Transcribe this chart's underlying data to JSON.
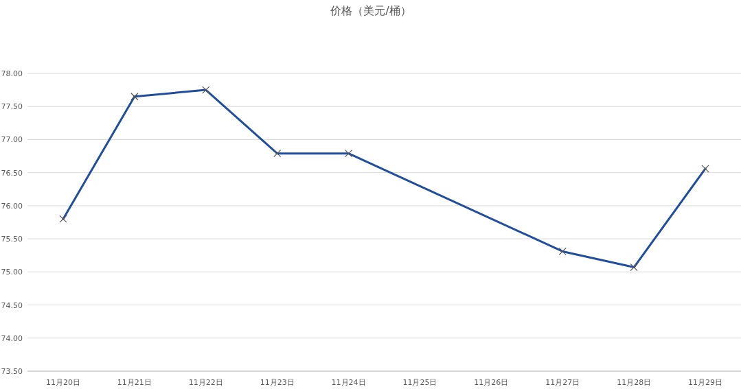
{
  "chart_data": {
    "type": "line",
    "title": "价格（美元/桶）",
    "categories": [
      "11月20日",
      "11月21日",
      "11月22日",
      "11月23日",
      "11月24日",
      "11月25日",
      "11月26日",
      "11月27日",
      "11月28日",
      "11月29日"
    ],
    "series": [
      {
        "color": "#1f4e9c",
        "values": [
          75.8,
          77.65,
          77.75,
          76.79,
          76.79,
          null,
          null,
          75.31,
          75.07,
          76.56
        ]
      }
    ],
    "ylim": [
      73.5,
      78.0
    ],
    "yticks": [
      {
        "value": 73.5,
        "label": "73.50"
      },
      {
        "value": 74.0,
        "label": "74.00"
      },
      {
        "value": 74.5,
        "label": "74.50"
      },
      {
        "value": 75.0,
        "label": "75.00"
      },
      {
        "value": 75.5,
        "label": "75.50"
      },
      {
        "value": 76.0,
        "label": "76.00"
      },
      {
        "value": 76.5,
        "label": "76.50"
      },
      {
        "value": 77.0,
        "label": "77.00"
      },
      {
        "value": 77.5,
        "label": "77.50"
      },
      {
        "value": 78.0,
        "label": "78.00"
      }
    ],
    "grid": "y",
    "marker": "cross",
    "line_style": "solid"
  }
}
